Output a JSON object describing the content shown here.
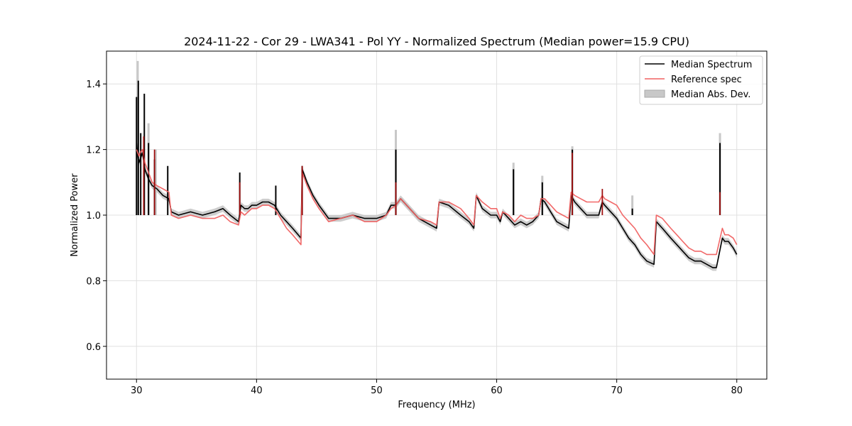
{
  "chart_data": {
    "type": "line",
    "title": "2024-11-22 - Cor 29 - LWA341 - Pol YY - Normalized Spectrum (Median power=15.9 CPU)",
    "xlabel": "Frequency (MHz)",
    "ylabel": "Normalized Power",
    "xlim": [
      27.5,
      82.5
    ],
    "ylim": [
      0.5,
      1.5
    ],
    "xticks": [
      30,
      40,
      50,
      60,
      70,
      80
    ],
    "yticks": [
      0.6,
      0.8,
      1.0,
      1.2,
      1.4
    ],
    "grid": true,
    "legend_position": "top-right",
    "colors": {
      "median": "#000000",
      "reference": "#f06060",
      "band": "#c8c8c8",
      "grid": "#e0e0e0"
    },
    "series": [
      {
        "name": "Median Spectrum",
        "x": [
          30.0,
          30.1,
          30.2,
          30.3,
          30.5,
          30.7,
          31.0,
          31.3,
          31.7,
          32.2,
          32.7,
          32.9,
          33.5,
          34.5,
          35.5,
          36.5,
          37.2,
          37.8,
          38.5,
          38.7,
          39.0,
          39.3,
          39.6,
          40.0,
          40.5,
          41.0,
          41.5,
          42.0,
          42.5,
          43.0,
          43.7,
          43.8,
          44.2,
          44.7,
          45.2,
          46.0,
          47.0,
          48.0,
          49.0,
          50.0,
          50.8,
          51.2,
          51.6,
          52.0,
          52.5,
          53.5,
          54.5,
          55.0,
          55.2,
          56.0,
          57.0,
          57.7,
          58.1,
          58.3,
          58.8,
          59.5,
          60.0,
          60.3,
          60.5,
          61.0,
          61.5,
          62.0,
          62.5,
          63.0,
          63.5,
          63.7,
          64.0,
          64.5,
          65.0,
          65.5,
          66.0,
          66.2,
          66.5,
          67.0,
          67.5,
          68.0,
          68.5,
          68.8,
          69.0,
          69.5,
          70.0,
          70.5,
          71.0,
          71.5,
          72.0,
          72.5,
          73.1,
          73.3,
          73.8,
          74.5,
          75.0,
          75.5,
          76.0,
          76.5,
          77.0,
          77.5,
          78.0,
          78.3,
          78.8,
          79.0,
          79.3,
          79.7,
          80.0
        ],
        "values": [
          1.22,
          1.18,
          1.16,
          1.17,
          1.19,
          1.14,
          1.11,
          1.09,
          1.08,
          1.06,
          1.05,
          1.01,
          1.0,
          1.01,
          1.0,
          1.01,
          1.02,
          1.0,
          0.98,
          1.03,
          1.02,
          1.02,
          1.03,
          1.03,
          1.04,
          1.04,
          1.03,
          1.0,
          0.98,
          0.96,
          0.93,
          1.14,
          1.1,
          1.06,
          1.03,
          0.99,
          0.99,
          1.0,
          0.99,
          0.99,
          1.0,
          1.03,
          1.03,
          1.05,
          1.03,
          0.99,
          0.97,
          0.96,
          1.04,
          1.03,
          1.0,
          0.98,
          0.96,
          1.06,
          1.02,
          1.0,
          1.0,
          0.98,
          1.01,
          0.99,
          0.97,
          0.98,
          0.97,
          0.98,
          1.0,
          1.05,
          1.04,
          1.01,
          0.98,
          0.97,
          0.96,
          1.06,
          1.04,
          1.02,
          1.0,
          1.0,
          1.0,
          1.04,
          1.03,
          1.01,
          0.99,
          0.96,
          0.93,
          0.91,
          0.88,
          0.86,
          0.85,
          0.98,
          0.96,
          0.93,
          0.91,
          0.89,
          0.87,
          0.86,
          0.86,
          0.85,
          0.84,
          0.84,
          0.93,
          0.92,
          0.92,
          0.9,
          0.88
        ],
        "spikes": [
          {
            "x": 30.0,
            "top": 1.36
          },
          {
            "x": 30.15,
            "top": 1.41
          },
          {
            "x": 30.35,
            "top": 1.25
          },
          {
            "x": 30.65,
            "top": 1.37
          },
          {
            "x": 31.0,
            "top": 1.22
          },
          {
            "x": 31.5,
            "top": 1.17
          },
          {
            "x": 32.6,
            "top": 1.15
          },
          {
            "x": 38.6,
            "top": 1.13
          },
          {
            "x": 41.6,
            "top": 1.09
          },
          {
            "x": 43.8,
            "top": 1.15
          },
          {
            "x": 51.6,
            "top": 1.2
          },
          {
            "x": 61.4,
            "top": 1.14
          },
          {
            "x": 63.8,
            "top": 1.1
          },
          {
            "x": 66.3,
            "top": 1.2
          },
          {
            "x": 71.3,
            "top": 1.02
          },
          {
            "x": 78.6,
            "top": 1.22
          }
        ]
      },
      {
        "name": "Reference spec",
        "x": [
          30.0,
          30.1,
          30.2,
          30.3,
          30.5,
          30.7,
          31.0,
          31.3,
          31.7,
          32.2,
          32.7,
          32.9,
          33.5,
          34.5,
          35.5,
          36.5,
          37.2,
          37.8,
          38.5,
          38.7,
          39.0,
          39.3,
          39.6,
          40.0,
          40.5,
          41.0,
          41.5,
          42.0,
          42.5,
          43.0,
          43.7,
          43.8,
          44.2,
          44.7,
          45.2,
          46.0,
          47.0,
          48.0,
          49.0,
          50.0,
          50.8,
          51.2,
          51.6,
          52.0,
          52.5,
          53.5,
          54.5,
          55.0,
          55.2,
          56.0,
          57.0,
          57.7,
          58.1,
          58.3,
          58.8,
          59.5,
          60.0,
          60.3,
          60.5,
          61.0,
          61.5,
          62.0,
          62.5,
          63.0,
          63.5,
          63.7,
          64.0,
          64.5,
          65.0,
          65.5,
          66.0,
          66.2,
          66.5,
          67.0,
          67.5,
          68.0,
          68.5,
          68.8,
          69.0,
          69.5,
          70.0,
          70.5,
          71.0,
          71.5,
          72.0,
          72.5,
          73.1,
          73.3,
          73.8,
          74.5,
          75.0,
          75.5,
          76.0,
          76.5,
          77.0,
          77.5,
          78.0,
          78.3,
          78.8,
          79.0,
          79.3,
          79.7,
          80.0
        ],
        "values": [
          1.2,
          1.19,
          1.18,
          1.19,
          1.2,
          1.16,
          1.13,
          1.1,
          1.09,
          1.08,
          1.07,
          1.0,
          0.99,
          1.0,
          0.99,
          0.99,
          1.0,
          0.98,
          0.97,
          1.01,
          1.0,
          1.01,
          1.02,
          1.02,
          1.03,
          1.03,
          1.02,
          0.99,
          0.96,
          0.94,
          0.91,
          1.13,
          1.09,
          1.05,
          1.02,
          0.98,
          0.99,
          1.0,
          0.98,
          0.98,
          1.0,
          1.02,
          1.03,
          1.05,
          1.03,
          0.99,
          0.98,
          0.97,
          1.04,
          1.04,
          1.02,
          0.99,
          0.97,
          1.06,
          1.04,
          1.02,
          1.02,
          0.99,
          1.01,
          1.0,
          0.98,
          1.0,
          0.99,
          0.99,
          1.0,
          1.05,
          1.05,
          1.03,
          1.01,
          1.0,
          0.99,
          1.07,
          1.06,
          1.05,
          1.04,
          1.04,
          1.04,
          1.06,
          1.05,
          1.04,
          1.03,
          1.0,
          0.98,
          0.96,
          0.93,
          0.91,
          0.88,
          1.0,
          0.99,
          0.96,
          0.94,
          0.92,
          0.9,
          0.89,
          0.89,
          0.88,
          0.88,
          0.88,
          0.96,
          0.94,
          0.94,
          0.93,
          0.91
        ],
        "spikes": [
          {
            "x": 30.6,
            "top": 1.24
          },
          {
            "x": 31.5,
            "top": 1.2
          },
          {
            "x": 38.6,
            "top": 1.1
          },
          {
            "x": 43.8,
            "top": 1.15
          },
          {
            "x": 51.6,
            "top": 1.1
          },
          {
            "x": 66.3,
            "top": 1.19
          },
          {
            "x": 68.8,
            "top": 1.08
          },
          {
            "x": 78.6,
            "top": 1.07
          }
        ]
      },
      {
        "name": "Median Abs. Dev.",
        "band_halfwidth": 0.01,
        "spikes": [
          {
            "x": 30.1,
            "top": 1.47
          },
          {
            "x": 31.0,
            "top": 1.28
          },
          {
            "x": 31.6,
            "top": 1.2
          },
          {
            "x": 51.6,
            "top": 1.26
          },
          {
            "x": 61.4,
            "top": 1.16
          },
          {
            "x": 63.8,
            "top": 1.12
          },
          {
            "x": 66.3,
            "top": 1.21
          },
          {
            "x": 71.3,
            "top": 1.06
          },
          {
            "x": 78.6,
            "top": 1.25
          }
        ]
      }
    ]
  }
}
